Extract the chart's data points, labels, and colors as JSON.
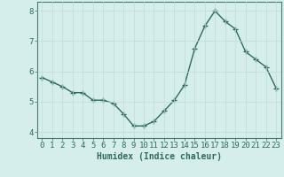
{
  "x": [
    0,
    1,
    2,
    3,
    4,
    5,
    6,
    7,
    8,
    9,
    10,
    11,
    12,
    13,
    14,
    15,
    16,
    17,
    18,
    19,
    20,
    21,
    22,
    23
  ],
  "y": [
    5.8,
    5.65,
    5.5,
    5.3,
    5.3,
    5.05,
    5.05,
    4.95,
    4.6,
    4.2,
    4.2,
    4.35,
    4.7,
    5.05,
    5.55,
    6.75,
    7.5,
    8.0,
    7.65,
    7.4,
    6.65,
    6.4,
    6.15,
    5.45
  ],
  "line_color": "#2e6b5e",
  "marker": "+",
  "marker_size": 4,
  "linewidth": 1.0,
  "xlabel": "Humidex (Indice chaleur)",
  "xlim": [
    -0.5,
    23.5
  ],
  "ylim": [
    3.8,
    8.3
  ],
  "yticks": [
    4,
    5,
    6,
    7,
    8
  ],
  "xticks": [
    0,
    1,
    2,
    3,
    4,
    5,
    6,
    7,
    8,
    9,
    10,
    11,
    12,
    13,
    14,
    15,
    16,
    17,
    18,
    19,
    20,
    21,
    22,
    23
  ],
  "bg_color": "#d5eeeb",
  "grid_color": "#c0dcd8",
  "axis_color": "#4a7a72",
  "xlabel_fontsize": 7,
  "tick_fontsize": 6.5
}
